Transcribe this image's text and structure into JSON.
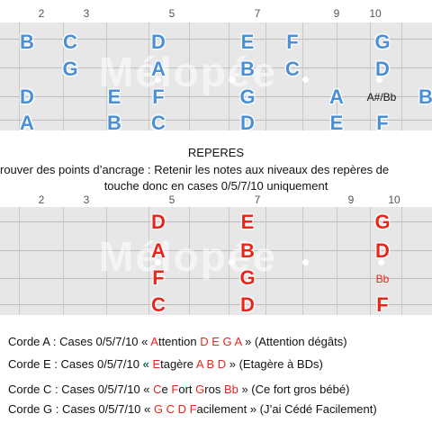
{
  "top_fret_numbers": [
    "2",
    "3",
    "5",
    "7",
    "9",
    "10"
  ],
  "bottom_fret_numbers": [
    "2",
    "3",
    "5",
    "7",
    "9",
    "10"
  ],
  "watermark": "Mélopée",
  "top_notes": [
    {
      "label": "B",
      "color": "blue"
    },
    {
      "label": "C",
      "color": "blue"
    },
    {
      "label": "D",
      "color": "blue"
    },
    {
      "label": "E",
      "color": "blue"
    },
    {
      "label": "F",
      "color": "blue"
    },
    {
      "label": "G",
      "color": "blue"
    },
    {
      "label": "G",
      "color": "blue"
    },
    {
      "label": "A",
      "color": "blue"
    },
    {
      "label": "B",
      "color": "blue"
    },
    {
      "label": "C",
      "color": "blue"
    },
    {
      "label": "D",
      "color": "blue"
    },
    {
      "label": "D",
      "color": "blue"
    },
    {
      "label": "E",
      "color": "blue"
    },
    {
      "label": "F",
      "color": "blue"
    },
    {
      "label": "G",
      "color": "blue"
    },
    {
      "label": "A",
      "color": "blue"
    },
    {
      "label": "A#/Bb",
      "color": "black"
    },
    {
      "label": "B",
      "color": "blue"
    },
    {
      "label": "A",
      "color": "blue"
    },
    {
      "label": "B",
      "color": "blue"
    },
    {
      "label": "C",
      "color": "blue"
    },
    {
      "label": "D",
      "color": "blue"
    },
    {
      "label": "E",
      "color": "blue"
    },
    {
      "label": "F",
      "color": "blue"
    }
  ],
  "bottom_notes": [
    {
      "label": "D",
      "color": "red"
    },
    {
      "label": "E",
      "color": "red"
    },
    {
      "label": "G",
      "color": "red"
    },
    {
      "label": "A",
      "color": "red"
    },
    {
      "label": "B",
      "color": "red"
    },
    {
      "label": "D",
      "color": "red"
    },
    {
      "label": "F",
      "color": "red"
    },
    {
      "label": "G",
      "color": "red"
    },
    {
      "label": "Bb",
      "color": "red"
    },
    {
      "label": "C",
      "color": "red"
    },
    {
      "label": "D",
      "color": "red"
    },
    {
      "label": "F",
      "color": "red"
    }
  ],
  "section_title": "REPERES",
  "section_text_1": "rouver des points d’ancrage : Retenir les notes aux niveaux des repères de",
  "section_text_2": "touche donc en cases 0/5/7/10 uniquement",
  "rules": [
    {
      "prefix": "Corde A : Cases 0/5/7/10 « ",
      "parts": [
        [
          "A",
          "hl"
        ],
        [
          "ttention ",
          ""
        ],
        [
          "D E G A",
          "hl"
        ]
      ],
      "suffix": " » (Attention dégâts)"
    },
    {
      "prefix": "Corde E : Cases 0/5/7/10 « ",
      "parts": [
        [
          "E",
          "hl"
        ],
        [
          "tagère ",
          ""
        ],
        [
          "A B D",
          "hl"
        ]
      ],
      "suffix": " » (Etagère à BDs)"
    },
    {
      "prefix": "Corde C : Cases 0/5/7/10 « ",
      "parts": [
        [
          "C",
          "hl"
        ],
        [
          "e ",
          ""
        ],
        [
          "F",
          "hl"
        ],
        [
          "ort ",
          ""
        ],
        [
          "G",
          "hl"
        ],
        [
          "ros ",
          ""
        ],
        [
          "Bb",
          "hl"
        ]
      ],
      "suffix": " » (Ce fort gros bébé)"
    },
    {
      "prefix": "Corde G : Cases 0/5/7/10 « ",
      "parts": [
        [
          "G C D F",
          "hl"
        ],
        [
          "acilement",
          ""
        ]
      ],
      "suffix": " » (J’ai Cédé Facilement)"
    }
  ]
}
